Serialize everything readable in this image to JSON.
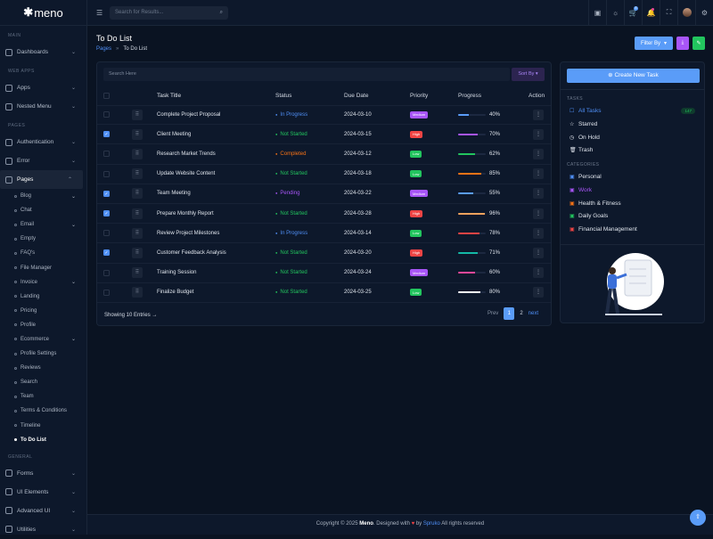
{
  "brand": "meno",
  "sidebar": [
    {
      "t": "sec",
      "label": "MAIN"
    },
    {
      "t": "item",
      "label": "Dashboards",
      "chev": "⌄"
    },
    {
      "t": "sec",
      "label": "WEB APPS"
    },
    {
      "t": "item",
      "label": "Apps",
      "chev": "⌄"
    },
    {
      "t": "item",
      "label": "Nested Menu",
      "chev": "⌄"
    },
    {
      "t": "sec",
      "label": "PAGES"
    },
    {
      "t": "item",
      "label": "Authentication",
      "chev": "⌄"
    },
    {
      "t": "item",
      "label": "Error",
      "chev": "⌄"
    },
    {
      "t": "item",
      "label": "Pages",
      "chev": "⌃",
      "active": true
    },
    {
      "t": "sub",
      "label": "Blog",
      "chev": "⌄"
    },
    {
      "t": "sub",
      "label": "Chat"
    },
    {
      "t": "sub",
      "label": "Email",
      "chev": "⌄"
    },
    {
      "t": "sub",
      "label": "Empty"
    },
    {
      "t": "sub",
      "label": "FAQ's"
    },
    {
      "t": "sub",
      "label": "File Manager"
    },
    {
      "t": "sub",
      "label": "Invoice",
      "chev": "⌄"
    },
    {
      "t": "sub",
      "label": "Landing"
    },
    {
      "t": "sub",
      "label": "Pricing"
    },
    {
      "t": "sub",
      "label": "Profile"
    },
    {
      "t": "sub",
      "label": "Ecommerce",
      "chev": "⌄"
    },
    {
      "t": "sub",
      "label": "Profile Settings"
    },
    {
      "t": "sub",
      "label": "Reviews"
    },
    {
      "t": "sub",
      "label": "Search"
    },
    {
      "t": "sub",
      "label": "Team"
    },
    {
      "t": "sub",
      "label": "Terms & Conditions"
    },
    {
      "t": "sub",
      "label": "Timeline"
    },
    {
      "t": "sub",
      "label": "To Do List",
      "active": true
    },
    {
      "t": "sec",
      "label": "GENERAL"
    },
    {
      "t": "item",
      "label": "Forms",
      "chev": "⌄"
    },
    {
      "t": "item",
      "label": "UI Elements",
      "chev": "⌄"
    },
    {
      "t": "item",
      "label": "Advanced UI",
      "chev": "⌄"
    },
    {
      "t": "item",
      "label": "Utilities",
      "chev": "⌄"
    }
  ],
  "header": {
    "search_placeholder": "Search for Results...",
    "cart_count": "5"
  },
  "page": {
    "title": "To Do List",
    "crumb_parent": "Pages",
    "crumb_current": "To Do List",
    "filter_label": "Filter By"
  },
  "table": {
    "search_placeholder": "Search Here",
    "sort_label": "Sort By",
    "columns": [
      "Task Title",
      "Status",
      "Due Date",
      "Priority",
      "Progress",
      "Action"
    ],
    "rows": [
      {
        "checked": false,
        "title": "Complete Project Proposal",
        "status": "In Progress",
        "due": "2024-03-10",
        "priority": "Medium",
        "progress": 40,
        "color": "#5a9cf8"
      },
      {
        "checked": true,
        "title": "Client Meeting",
        "status": "Not Started",
        "due": "2024-03-15",
        "priority": "High",
        "progress": 70,
        "color": "#a855f7"
      },
      {
        "checked": false,
        "title": "Research Market Trends",
        "status": "Completed",
        "due": "2024-03-12",
        "priority": "Low",
        "progress": 62,
        "color": "#22c55e"
      },
      {
        "checked": false,
        "title": "Update Website Content",
        "status": "Not Started",
        "due": "2024-03-18",
        "priority": "Low",
        "progress": 85,
        "color": "#f97316"
      },
      {
        "checked": true,
        "title": "Team Meeting",
        "status": "Pending",
        "due": "2024-03-22",
        "priority": "Medium",
        "progress": 55,
        "color": "#5a9cf8"
      },
      {
        "checked": true,
        "title": "Prepare Monthly Report",
        "status": "Not Started",
        "due": "2024-03-28",
        "priority": "High",
        "progress": 96,
        "color": "#f5a25d"
      },
      {
        "checked": false,
        "title": "Review Project Milestones",
        "status": "In Progress",
        "due": "2024-03-14",
        "priority": "Low",
        "progress": 78,
        "color": "#ef4444"
      },
      {
        "checked": true,
        "title": "Customer Feedback Analysis",
        "status": "Not Started",
        "due": "2024-03-20",
        "priority": "High",
        "progress": 71,
        "color": "#14b8a6"
      },
      {
        "checked": false,
        "title": "Training Session",
        "status": "Not Started",
        "due": "2024-03-24",
        "priority": "Medium",
        "progress": 60,
        "color": "#ec4899"
      },
      {
        "checked": false,
        "title": "Finalize Budget",
        "status": "Not Started",
        "due": "2024-03-25",
        "priority": "Low",
        "progress": 80,
        "color": "#ffffff"
      }
    ],
    "footer": "Showing 10 Entries →",
    "pager": {
      "prev": "Prev",
      "pages": [
        "1",
        "2"
      ],
      "next": "next"
    }
  },
  "status_colors": {
    "In Progress": "#4f8ff7",
    "Not Started": "#22c55e",
    "Completed": "#f97316",
    "Pending": "#a855f7"
  },
  "priority_colors": {
    "Medium": "#a855f7",
    "High": "#ef4444",
    "Low": "#22c55e"
  },
  "panel": {
    "create_label": "Create New Task",
    "tasks_heading": "TASKS",
    "tasks": [
      {
        "label": "All Tasks",
        "icon": "☐",
        "count": "147",
        "active": true
      },
      {
        "label": "Starred",
        "icon": "☆"
      },
      {
        "label": "On Hold",
        "icon": "◷"
      },
      {
        "label": "Trash",
        "icon": "🗑"
      }
    ],
    "categories_heading": "CATEGORIES",
    "categories": [
      {
        "label": "Personal",
        "color": "#4f8ff7"
      },
      {
        "label": "Work",
        "color": "#a855f7",
        "active": true
      },
      {
        "label": "Health & Fitness",
        "color": "#f97316"
      },
      {
        "label": "Daily Goals",
        "color": "#22c55e"
      },
      {
        "label": "Financial Management",
        "color": "#ef4444"
      }
    ]
  },
  "footer": {
    "pre": "Copyright © 2025 ",
    "brand": "Meno",
    "mid": ". Designed with ",
    "by": " by ",
    "author": "Spruko",
    "post": " All rights reserved"
  }
}
